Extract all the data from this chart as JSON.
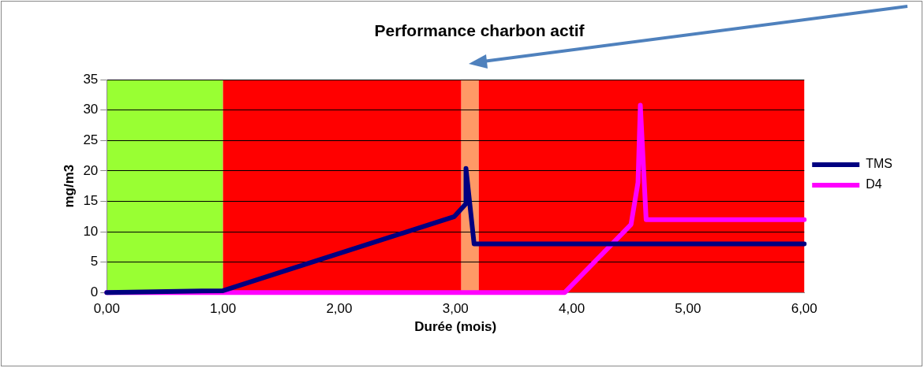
{
  "chart_data": {
    "type": "line",
    "title": "Performance charbon actif",
    "xlabel": "Durée (mois)",
    "ylabel": "mg/m3",
    "xlim": [
      0,
      6
    ],
    "xticks": [
      {
        "value": 0,
        "label": "0,00"
      },
      {
        "value": 1,
        "label": "1,00"
      },
      {
        "value": 2,
        "label": "2,00"
      },
      {
        "value": 3,
        "label": "3,00"
      },
      {
        "value": 4,
        "label": "4,00"
      },
      {
        "value": 5,
        "label": "5,00"
      },
      {
        "value": 6,
        "label": "6,00"
      }
    ],
    "ylim": [
      0,
      35
    ],
    "yticks": [
      0,
      5,
      10,
      15,
      20,
      25,
      30,
      35
    ],
    "grid": "y",
    "legend": "right",
    "marker": "none",
    "line_style": "solid",
    "bands": [
      {
        "axis": "x",
        "from": 0,
        "to": 1,
        "color": "#99ff33"
      },
      {
        "axis": "x",
        "from": 1,
        "to": 3.05,
        "color": "#ff0000"
      },
      {
        "axis": "x",
        "from": 3.05,
        "to": 3.2,
        "color": "#ff9966"
      },
      {
        "axis": "x",
        "from": 3.2,
        "to": 6,
        "color": "#ff0000"
      }
    ],
    "series": [
      {
        "name": "TMS",
        "color": "#000080",
        "x": [
          0,
          1,
          2.99,
          3.09,
          3.09,
          3.16,
          6
        ],
        "values": [
          0,
          0.3,
          12.5,
          14.6,
          20.4,
          8,
          8
        ]
      },
      {
        "name": "D4",
        "color": "#ff00ff",
        "x": [
          0,
          3.94,
          4.51,
          4.57,
          4.59,
          4.64,
          6
        ],
        "values": [
          0,
          0,
          11.2,
          18.1,
          30.8,
          12,
          12
        ]
      }
    ]
  }
}
